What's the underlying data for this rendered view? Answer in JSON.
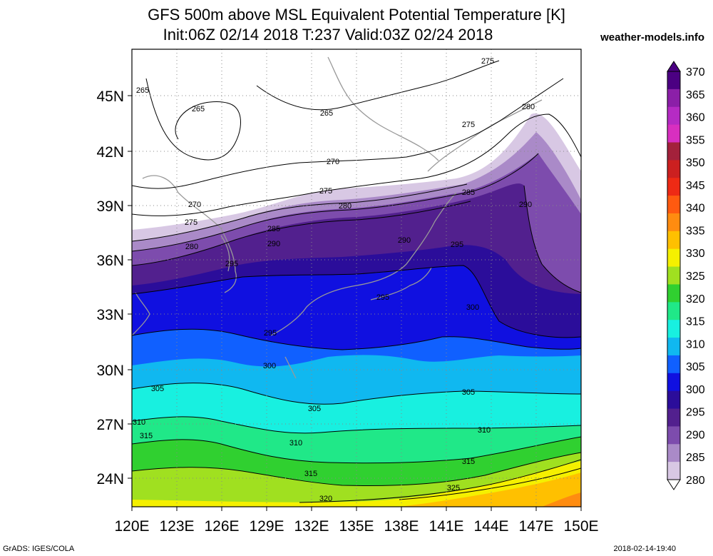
{
  "header": {
    "title_line1": "GFS 500m above MSL Equivalent Potential Temperature [K]",
    "title_line2": "Init:06Z 02/14 2018 T:237 Valid:03Z 02/24 2018",
    "site": "weather-models.info"
  },
  "footer": {
    "left": "GrADS: IGES/COLA",
    "right": "2018-02-14-19:40"
  },
  "axes": {
    "lat_labels": [
      "45N",
      "42N",
      "39N",
      "36N",
      "33N",
      "30N",
      "27N",
      "24N"
    ],
    "lon_labels": [
      "120E",
      "123E",
      "126E",
      "129E",
      "132E",
      "135E",
      "138E",
      "141E",
      "144E",
      "147E",
      "150E"
    ]
  },
  "colorbar": {
    "levels": [
      "370",
      "365",
      "360",
      "355",
      "350",
      "345",
      "340",
      "335",
      "330",
      "325",
      "320",
      "315",
      "310",
      "305",
      "300",
      "295",
      "290",
      "285",
      "280"
    ],
    "colors": [
      "#4b0082",
      "#8b1fa8",
      "#b52bc4",
      "#d82fc0",
      "#a3213b",
      "#cc2020",
      "#ee2a15",
      "#ff5a10",
      "#ff8c10",
      "#ffc000",
      "#f5f000",
      "#a0e020",
      "#30d030",
      "#20e888",
      "#18f0e0",
      "#10b8f0",
      "#1060ff",
      "#1010e0",
      "#2b0d9a",
      "#52208e",
      "#7d4cad",
      "#aa8ac8",
      "#d8c8e4"
    ]
  },
  "contour_labels": {
    "c265a": "265",
    "c265b": "265",
    "c265c": "265",
    "c270a": "270",
    "c270b": "270",
    "c275a": "275",
    "c275b": "275",
    "c275c": "275",
    "c275d": "275",
    "c280a": "280",
    "c280b": "280",
    "c280c": "280",
    "c285a": "285",
    "c285b": "285",
    "c290a": "290",
    "c290b": "290",
    "c290c": "290",
    "c295a": "295",
    "c295b": "295",
    "c295c": "295",
    "c295d": "295",
    "c300a": "300",
    "c300b": "300",
    "c305a": "305",
    "c305b": "305",
    "c305c": "305",
    "c310a": "310",
    "c310b": "310",
    "c310c": "310",
    "c315a": "315",
    "c315b": "315",
    "c315c": "315",
    "c320a": "320",
    "c325a": "325"
  }
}
